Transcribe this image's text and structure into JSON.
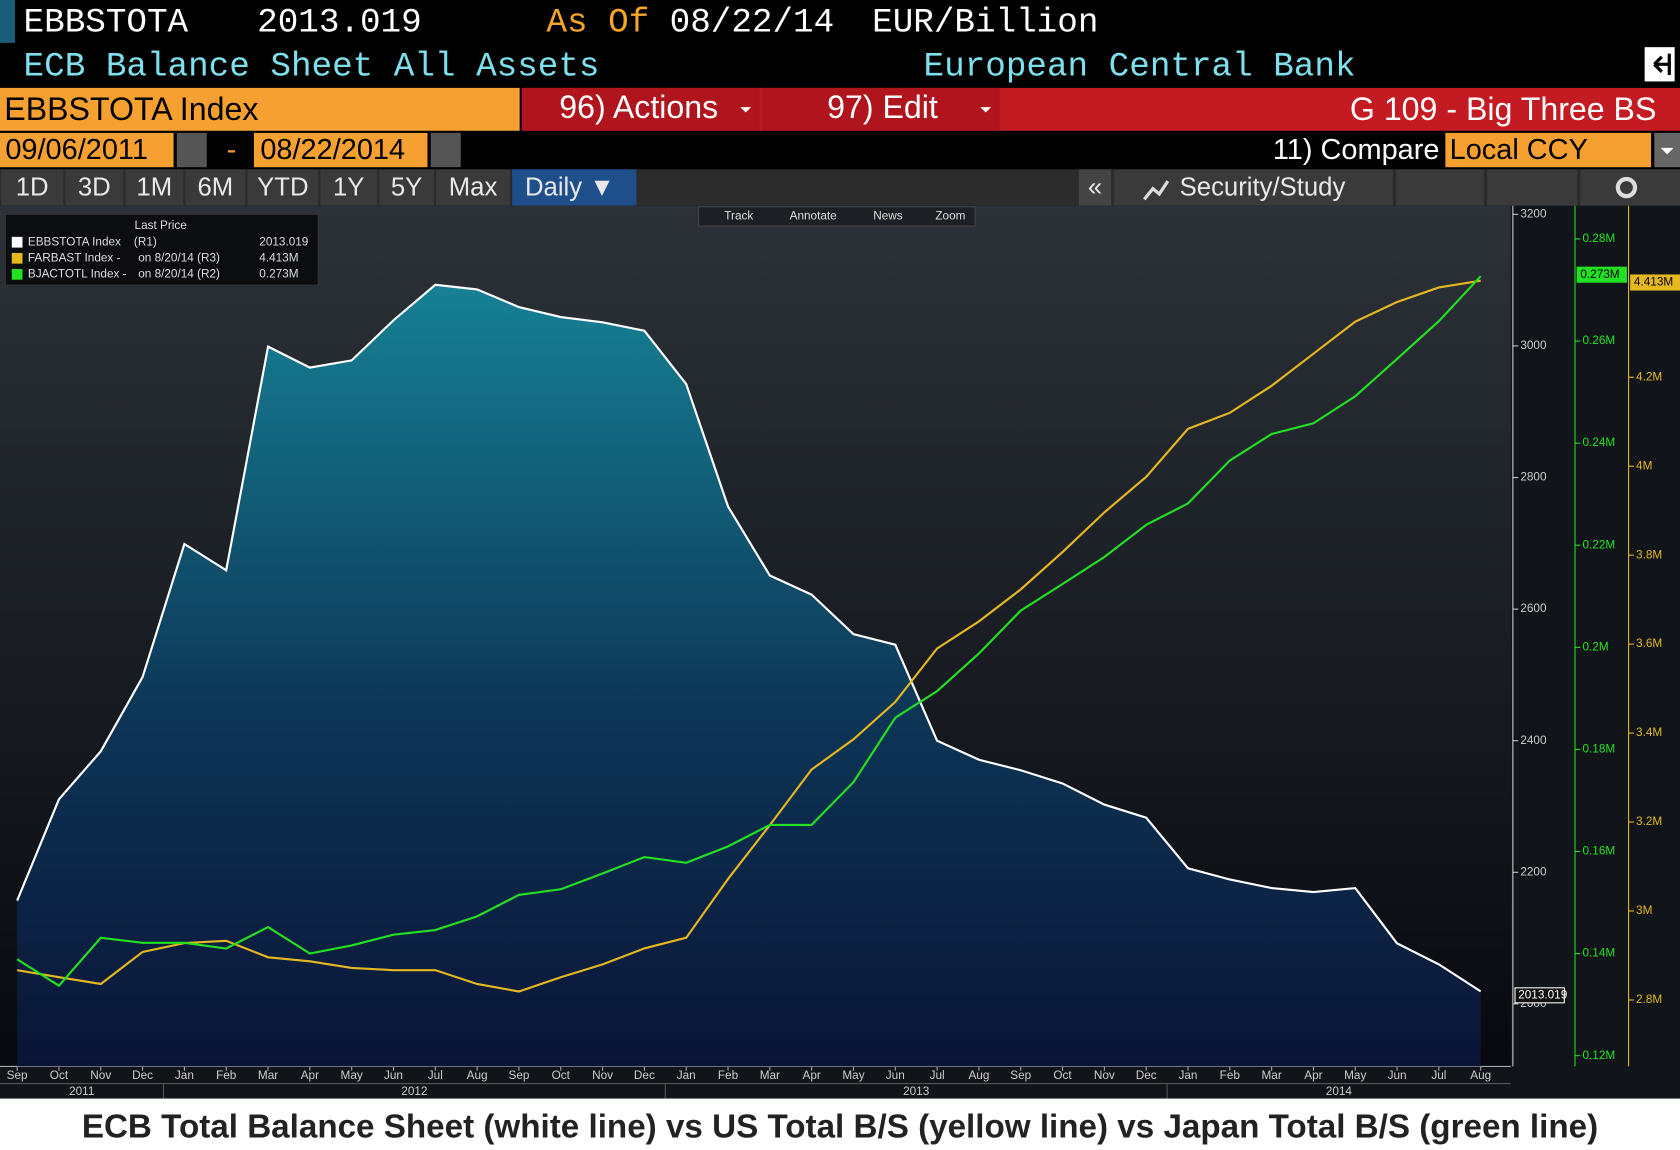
{
  "ui": {
    "ticker": "EBBSTOTA",
    "price": "2013.019",
    "as_of_label": "As Of",
    "as_of_date": "08/22/14",
    "units": "EUR/Billion",
    "description": "ECB Balance Sheet All Assets",
    "source": "European Central Bank",
    "security": "EBBSTOTA Index",
    "actions": "96) Actions",
    "edit": "97) Edit",
    "chart_name": "G 109 - Big Three BS",
    "start_date": "09/06/2011",
    "date_separator": "-",
    "end_date": "08/22/2014",
    "compare": "11) Compare",
    "currency": "Local CCY",
    "periods": [
      "1D",
      "3D",
      "1M",
      "6M",
      "YTD",
      "1Y",
      "5Y",
      "Max"
    ],
    "frequency": "Daily ▼",
    "collapse": "«",
    "security_study": "Security/Study",
    "tools": [
      "Track",
      "Annotate",
      "News",
      "Zoom"
    ]
  },
  "chart_data": {
    "type": "line",
    "title": "ECB Total Balance Sheet (white line) vs US Total B/S (yellow line) vs Japan Total B/S (green line)",
    "legend_title": "Last Price",
    "x": [
      "Sep",
      "Oct",
      "Nov",
      "Dec",
      "Jan",
      "Feb",
      "Mar",
      "Apr",
      "May",
      "Jun",
      "Jul",
      "Aug",
      "Sep",
      "Oct",
      "Nov",
      "Dec",
      "Jan",
      "Feb",
      "Mar",
      "Apr",
      "May",
      "Jun",
      "Jul",
      "Aug",
      "Sep",
      "Oct",
      "Nov",
      "Dec",
      "Jan",
      "Feb",
      "Mar",
      "Apr",
      "May",
      "Jun",
      "Jul",
      "Aug"
    ],
    "years": [
      "2011",
      "2012",
      "2013",
      "2014"
    ],
    "series": [
      {
        "name": "EBBSTOTA Index",
        "legend_note": "(R1)",
        "color": "#ffffff",
        "axis": "y",
        "last": 2013.019,
        "last_label": "2013.019",
        "values": [
          2157,
          2311,
          2384,
          2497,
          2699,
          2659,
          2999,
          2967,
          2978,
          3039,
          3093,
          3086,
          3059,
          3044,
          3036,
          3023,
          2942,
          2756,
          2651,
          2622,
          2562,
          2546,
          2400,
          2371,
          2355,
          2335,
          2303,
          2283,
          2206,
          2189,
          2176,
          2170,
          2176,
          2092,
          2060,
          2019
        ]
      },
      {
        "name": "FARBAST Index -",
        "legend_note": "on 8/20/14  (R3)",
        "color": "#e6b820",
        "axis": "y3",
        "last": 4413000,
        "last_label": "4.413M",
        "values": [
          2867000,
          2851000,
          2836000,
          2908000,
          2928000,
          2933000,
          2896000,
          2887000,
          2872000,
          2867000,
          2867000,
          2836000,
          2819000,
          2851000,
          2880000,
          2916000,
          2940000,
          3072000,
          3193000,
          3318000,
          3386000,
          3470000,
          3590000,
          3651000,
          3723000,
          3807000,
          3896000,
          3976000,
          4084000,
          4120000,
          4181000,
          4253000,
          4325000,
          4369000,
          4402000,
          4417000
        ]
      },
      {
        "name": "BJACTOTL Index -",
        "legend_note": "on 8/20/14  (R2)",
        "color": "#22e022",
        "axis": "y2",
        "last": 273000,
        "last_label": "0.273M",
        "values": [
          138900,
          133700,
          143100,
          142100,
          142100,
          141000,
          145200,
          140000,
          141600,
          143700,
          144600,
          147300,
          151500,
          152600,
          155700,
          158900,
          157800,
          161000,
          165200,
          165200,
          173600,
          186200,
          191400,
          198800,
          207200,
          212400,
          217700,
          224000,
          228200,
          236600,
          241800,
          243900,
          249200,
          256500,
          263900,
          272700
        ]
      }
    ],
    "ylim": [
      1905,
      3213
    ],
    "yticks": [
      2000,
      2200,
      2400,
      2600,
      2800,
      3000,
      3200
    ],
    "y2lim": [
      117900,
      286500
    ],
    "y2ticks": [
      {
        "value": 120000,
        "label": "0.12M"
      },
      {
        "value": 140000,
        "label": "0.14M"
      },
      {
        "value": 160000,
        "label": "0.16M"
      },
      {
        "value": 180000,
        "label": "0.18M"
      },
      {
        "value": 200000,
        "label": "0.2M"
      },
      {
        "value": 220000,
        "label": "0.22M"
      },
      {
        "value": 240000,
        "label": "0.24M"
      },
      {
        "value": 260000,
        "label": "0.26M"
      },
      {
        "value": 280000,
        "label": "0.28M"
      }
    ],
    "y3lim": [
      2650600,
      4585500
    ],
    "y3ticks": [
      {
        "value": 2800000,
        "label": "2.8M"
      },
      {
        "value": 3000000,
        "label": "3M"
      },
      {
        "value": 3200000,
        "label": "3.2M"
      },
      {
        "value": 3400000,
        "label": "3.4M"
      },
      {
        "value": 3600000,
        "label": "3.6M"
      },
      {
        "value": 3800000,
        "label": "3.8M"
      },
      {
        "value": 4000000,
        "label": "4M"
      },
      {
        "value": 4200000,
        "label": "4.2M"
      }
    ],
    "grid": false
  }
}
